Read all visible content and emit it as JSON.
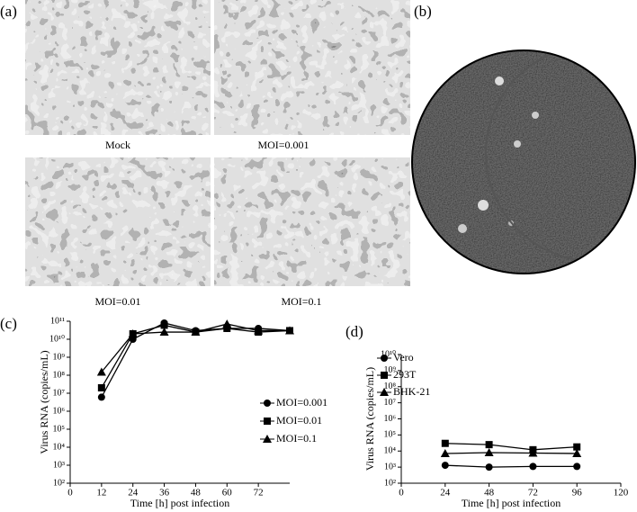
{
  "panel_labels": [
    "(a)",
    "(b)",
    "(c)",
    "(d)"
  ],
  "captions": [
    "Mock",
    "MOI=0.001",
    "MOI=0.01",
    "MOI=0.1"
  ],
  "chart_data": [
    {
      "type": "line",
      "y_label": "Virus RNA (copies/mL)",
      "x_label": "Time [h] post infection",
      "x": [
        12,
        24,
        36,
        48,
        60,
        72,
        84
      ],
      "xlim": [
        0,
        84
      ],
      "xticks": [
        0,
        12,
        24,
        36,
        48,
        60,
        72
      ],
      "log_y": true,
      "ylim": [
        100,
        100000000000
      ],
      "yticks": [
        {
          "value": 100,
          "label": "10²"
        },
        {
          "value": 1000,
          "label": "10³"
        },
        {
          "value": 10000,
          "label": "10⁴"
        },
        {
          "value": 100000,
          "label": "10⁵"
        },
        {
          "value": 1000000,
          "label": "10⁶"
        },
        {
          "value": 10000000,
          "label": "10⁷"
        },
        {
          "value": 100000000,
          "label": "10⁸"
        },
        {
          "value": 1000000000,
          "label": "10⁹"
        },
        {
          "value": 10000000000,
          "label": "10¹⁰"
        },
        {
          "value": 100000000000,
          "label": "10¹¹"
        }
      ],
      "series": [
        {
          "name": "MOI=0.001",
          "color": "#000000",
          "marker": "circle",
          "values": [
            6000000,
            10000000000,
            80000000000,
            30000000000,
            40000000000,
            40000000000,
            30000000000
          ]
        },
        {
          "name": "MOI=0.01",
          "color": "#000000",
          "marker": "square",
          "values": [
            20000000,
            20000000000,
            60000000000,
            25000000000,
            40000000000,
            25000000000,
            30000000000
          ]
        },
        {
          "name": "MOI=0.1",
          "color": "#000000",
          "marker": "triangle",
          "values": [
            150000000,
            20000000000,
            25000000000,
            25000000000,
            70000000000,
            30000000000,
            30000000000
          ]
        }
      ]
    },
    {
      "type": "line",
      "y_label": "Virus RNA (copies/mL)",
      "x_label": "Time [h] post infection",
      "x": [
        24,
        48,
        72,
        96
      ],
      "xlim": [
        0,
        120
      ],
      "xticks": [
        0,
        24,
        48,
        72,
        96,
        120
      ],
      "log_y": true,
      "ylim": [
        100,
        10000000000
      ],
      "yticks": [
        {
          "value": 100,
          "label": "10²"
        },
        {
          "value": 1000,
          "label": "10³"
        },
        {
          "value": 10000,
          "label": "10⁴"
        },
        {
          "value": 100000,
          "label": "10⁵"
        },
        {
          "value": 1000000,
          "label": "10⁶"
        },
        {
          "value": 10000000,
          "label": "10⁷"
        },
        {
          "value": 100000000,
          "label": "10⁸"
        },
        {
          "value": 1000000000,
          "label": "10⁹"
        },
        {
          "value": 10000000000,
          "label": "10¹⁰"
        }
      ],
      "series": [
        {
          "name": "Vero",
          "color": "#000000",
          "marker": "circle",
          "values": [
            1300,
            1000,
            1100,
            1100
          ]
        },
        {
          "name": "293T",
          "color": "#000000",
          "marker": "square",
          "values": [
            30000,
            25000,
            12000,
            18000
          ]
        },
        {
          "name": "BHK-21",
          "color": "#000000",
          "marker": "triangle",
          "values": [
            7000,
            8000,
            7500,
            7000
          ]
        }
      ]
    }
  ]
}
